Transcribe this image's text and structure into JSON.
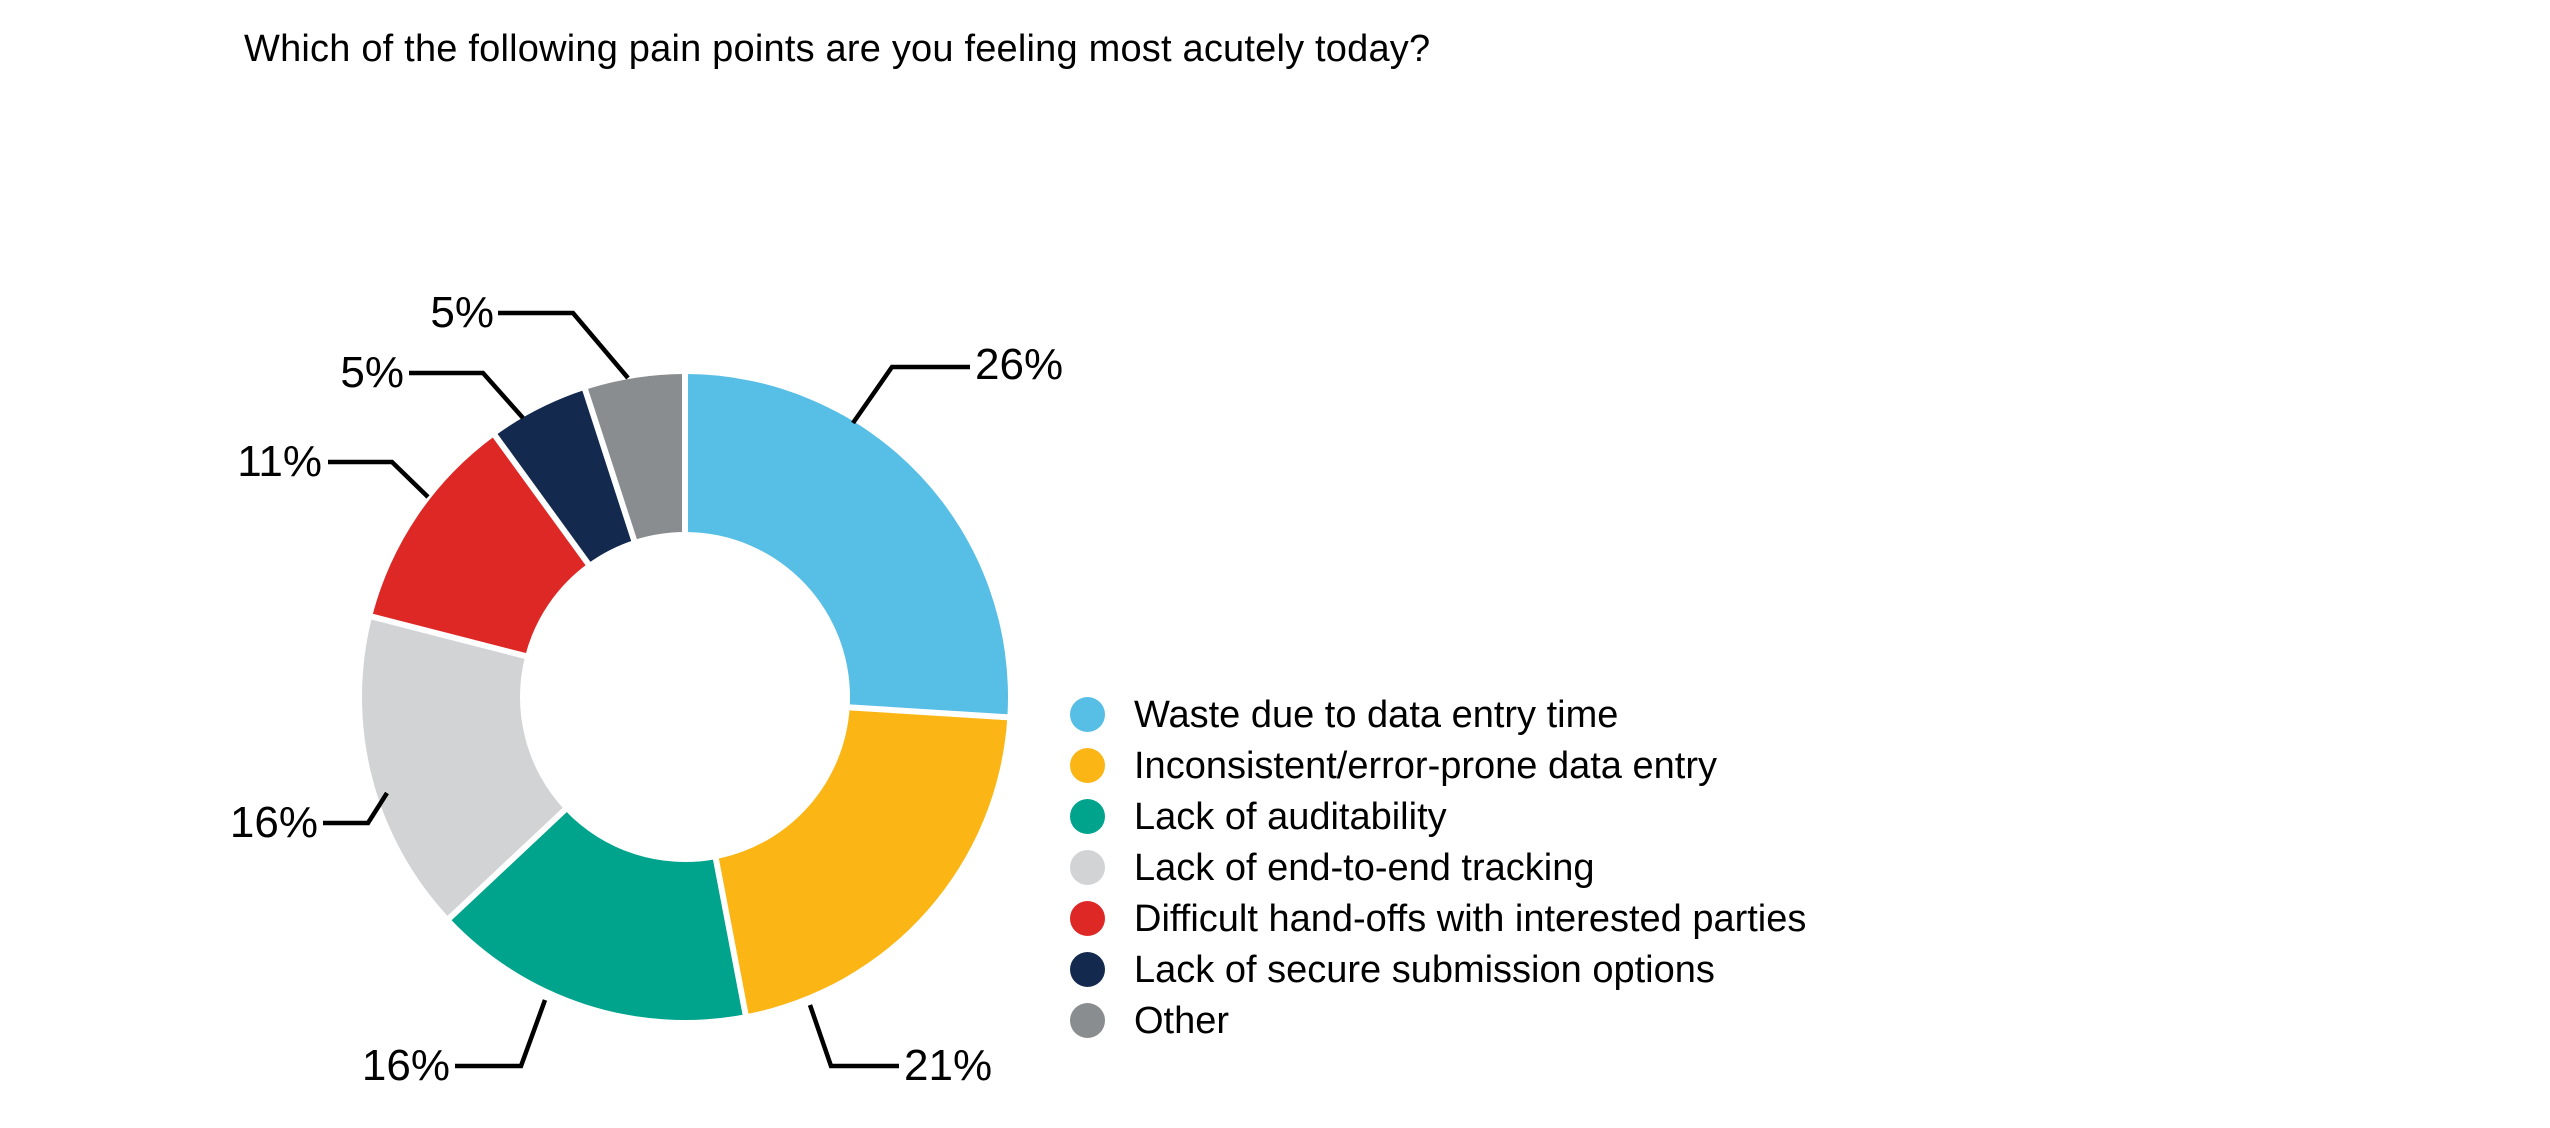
{
  "title": "Which of the following pain points are you feeling most acutely today?",
  "chart_data": {
    "type": "pie",
    "subtype": "donut",
    "title": "Which of the following pain points are you feeling most acutely today?",
    "categories": [
      "Waste due to data entry time",
      "Inconsistent/error-prone data entry",
      "Lack of auditability",
      "Lack of end-to-end tracking",
      "Difficult hand-offs with interested parties",
      "Lack of secure submission options",
      "Other"
    ],
    "values": [
      26,
      21,
      16,
      16,
      11,
      5,
      5
    ],
    "labels": [
      "26%",
      "21%",
      "16%",
      "16%",
      "11%",
      "5%",
      "5%"
    ],
    "colors": [
      "#57BEE6",
      "#FBB616",
      "#00A38B",
      "#D2D3D5",
      "#DE2826",
      "#14294E",
      "#8A8D8F"
    ],
    "start_angle_deg": 0,
    "direction": "clockwise",
    "donut_hole_ratio": 0.51,
    "slice_gap_color": "#ffffff",
    "leader_line_color": "#000000",
    "text_color": "#000000",
    "background_color": "#ffffff",
    "legend_position": "right",
    "legend_marker": "circle"
  }
}
